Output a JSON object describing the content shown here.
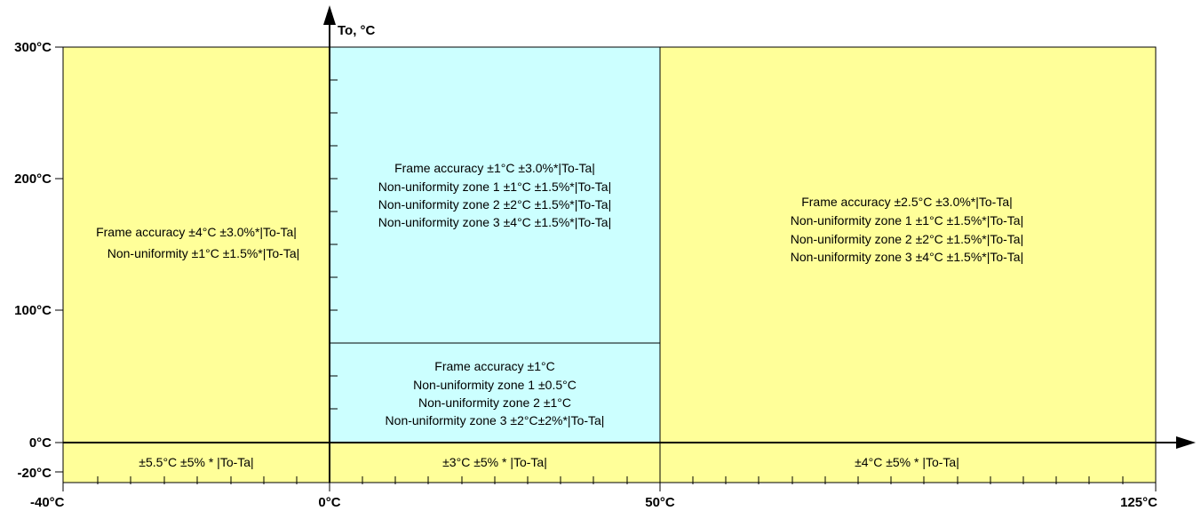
{
  "colors": {
    "yellow": "#ffff99",
    "cyan": "#ccffff",
    "line": "#000000"
  },
  "axes": {
    "y_title": "To, °C",
    "y_ticks": [
      "300°C",
      "200°C",
      "100°C",
      "0°C",
      "-20°C"
    ],
    "x_ticks": [
      "-40°C",
      "0°C",
      "50°C",
      "125°C"
    ]
  },
  "zones": {
    "left_upper": {
      "lines": [
        "Frame accuracy ±4°C ±3.0%*|To-Ta|",
        "Non-uniformity ±1°C ±1.5%*|To-Ta|"
      ]
    },
    "middle_upper": {
      "lines": [
        "Frame accuracy ±1°C ±3.0%*|To-Ta|",
        "Non-uniformity zone 1  ±1°C ±1.5%*|To-Ta|",
        "Non-uniformity zone 2  ±2°C ±1.5%*|To-Ta|",
        "Non-uniformity zone 3  ±4°C ±1.5%*|To-Ta|"
      ]
    },
    "middle_lower": {
      "lines": [
        "Frame accuracy ±1°C",
        "Non-uniformity zone 1 ±0.5°C",
        "Non-uniformity zone 2  ±1°C",
        "Non-uniformity zone 3  ±2°C±2%*|To-Ta|"
      ]
    },
    "right_upper": {
      "lines": [
        "Frame accuracy ±2.5°C ±3.0%*|To-Ta|",
        "Non-uniformity zone 1   ±1°C ±1.5%*|To-Ta|",
        "Non-uniformity zone 2  ±2°C ±1.5%*|To-Ta|",
        "Non-uniformity zone 3  ±4°C ±1.5%*|To-Ta|"
      ]
    },
    "bottom_left": {
      "label": "±5.5°C ±5% * |To-Ta|"
    },
    "bottom_middle": {
      "label": "±3°C ±5% * |To-Ta|"
    },
    "bottom_right": {
      "label": "±4°C ±5% * |To-Ta|"
    }
  }
}
